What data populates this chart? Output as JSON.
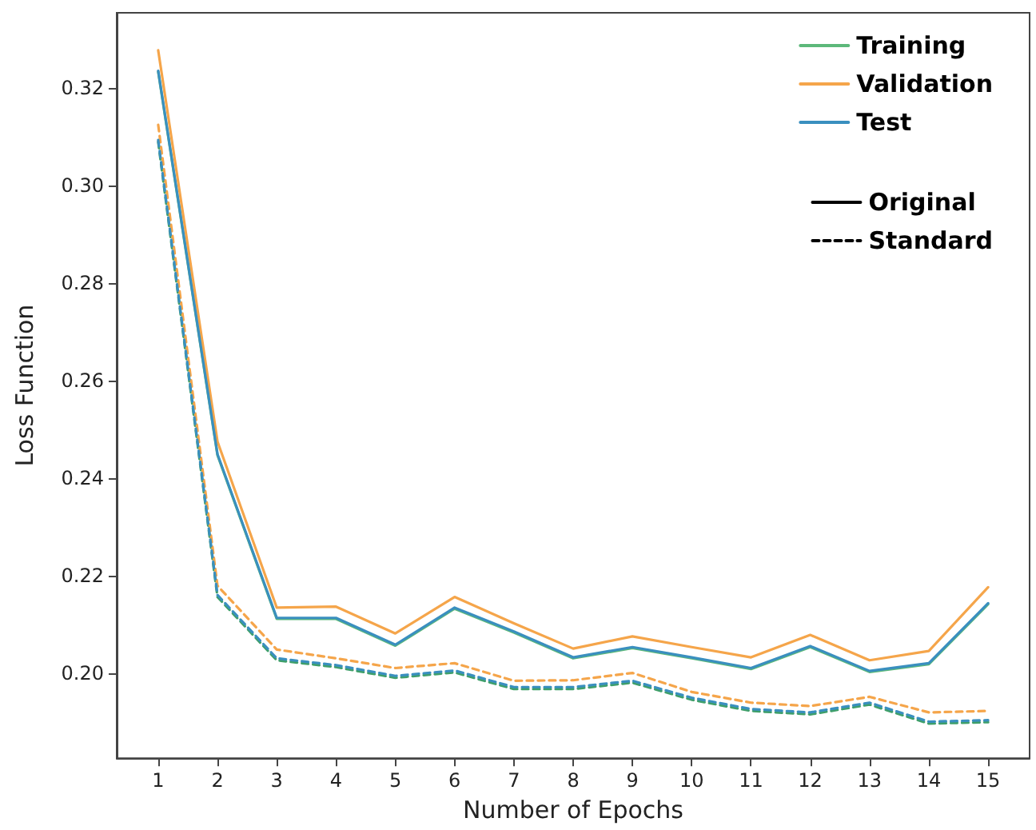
{
  "chart_data": {
    "type": "line",
    "xlabel": "Number of Epochs",
    "ylabel": "Loss Function",
    "x": [
      1,
      2,
      3,
      4,
      5,
      6,
      7,
      8,
      9,
      10,
      11,
      12,
      13,
      14,
      15
    ],
    "xlim": [
      0.3,
      15.7
    ],
    "xticks": [
      1,
      2,
      3,
      4,
      5,
      6,
      7,
      8,
      9,
      10,
      11,
      12,
      13,
      14,
      15
    ],
    "ylim": [
      0.1825,
      0.3355
    ],
    "yticks": [
      {
        "value": 0.2,
        "label": "0.20"
      },
      0.22,
      0.24,
      0.26,
      0.28,
      {
        "value": 0.3,
        "label": "0.30"
      },
      0.32
    ],
    "grid": false,
    "legend": "top right",
    "marker": "none",
    "series": [
      {
        "name": "Training",
        "color": "#5cb87a",
        "line_style": "solid",
        "values": [
          0.3234,
          0.2447,
          0.2111,
          0.2111,
          0.2056,
          0.2132,
          0.2083,
          0.203,
          0.2051,
          0.203,
          0.2008,
          0.2053,
          0.2002,
          0.2018,
          0.2141
        ]
      },
      {
        "name": "Validation",
        "color": "#f5a54a",
        "line_style": "solid",
        "values": [
          0.3278,
          0.2475,
          0.2134,
          0.2136,
          0.2081,
          0.2156,
          0.2102,
          0.205,
          0.2075,
          0.2053,
          0.2032,
          0.2078,
          0.2026,
          0.2045,
          0.2176
        ]
      },
      {
        "name": "Test",
        "color": "#3a8fbf",
        "line_style": "solid",
        "values": [
          0.3236,
          0.2449,
          0.2113,
          0.2113,
          0.2058,
          0.2134,
          0.2085,
          0.2032,
          0.2053,
          0.2032,
          0.201,
          0.2055,
          0.2004,
          0.202,
          0.2143
        ]
      },
      {
        "color": "#3f9f6a",
        "line_style": "dashed",
        "values": [
          0.309,
          0.2156,
          0.2026,
          0.2012,
          0.199,
          0.2001,
          0.1967,
          0.1967,
          0.198,
          0.1945,
          0.1922,
          0.1915,
          0.1935,
          0.1896,
          0.1899
        ]
      },
      {
        "color": "#f5a54a",
        "line_style": "dashed",
        "values": [
          0.3125,
          0.2179,
          0.2048,
          0.203,
          0.201,
          0.202,
          0.1984,
          0.1985,
          0.2,
          0.1961,
          0.1939,
          0.1932,
          0.1951,
          0.1919,
          0.1922
        ]
      },
      {
        "color": "#3a8fbf",
        "line_style": "dashed",
        "values": [
          0.3094,
          0.216,
          0.203,
          0.2016,
          0.1994,
          0.2005,
          0.1971,
          0.1971,
          0.1984,
          0.1949,
          0.1926,
          0.1919,
          0.1939,
          0.19,
          0.1903
        ]
      },
      {
        "name": "Original",
        "color": "#000000",
        "line_style": "solid",
        "values": [
          null,
          null,
          null,
          null,
          null,
          null,
          null,
          null,
          null,
          null,
          null,
          null,
          null,
          null,
          null
        ]
      },
      {
        "name": "Standard",
        "color": "#000000",
        "line_style": "dashed",
        "values": [
          null,
          null,
          null,
          null,
          null,
          null,
          null,
          null,
          null,
          null,
          null,
          null,
          null,
          null,
          null
        ]
      }
    ]
  }
}
